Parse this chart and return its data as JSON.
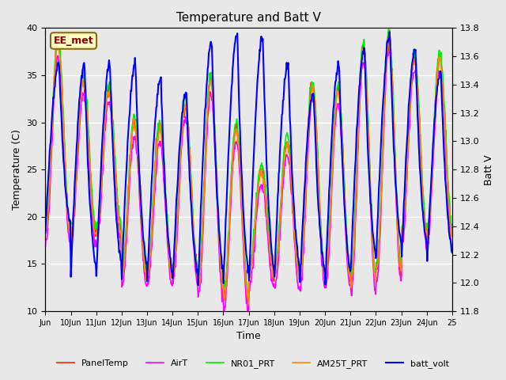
{
  "title": "Temperature and Batt V",
  "xlabel": "Time",
  "ylabel_left": "Temperature (C)",
  "ylabel_right": "Batt V",
  "annotation_text": "EE_met",
  "annotation_color": "#8B0000",
  "annotation_bg": "#FFFFC0",
  "annotation_border": "#8B6914",
  "left_ylim": [
    10,
    40
  ],
  "right_ylim": [
    11.8,
    13.8
  ],
  "plot_bg": "#E8E8E8",
  "grid_color": "#FFFFFF",
  "series": {
    "PanelTemp": {
      "color": "#FF2200",
      "lw": 1.2
    },
    "AirT": {
      "color": "#FF00FF",
      "lw": 1.2
    },
    "NR01_PRT": {
      "color": "#00EE00",
      "lw": 1.2
    },
    "AM25T_PRT": {
      "color": "#FF8800",
      "lw": 1.2
    },
    "batt_volt": {
      "color": "#0000FF",
      "lw": 1.5
    }
  },
  "xtick_labels": [
    "Jun",
    "10Jun",
    "11Jun",
    "12Jun",
    "13Jun",
    "14Jun",
    "15Jun",
    "16Jun",
    "17Jun",
    "18Jun",
    "19Jun",
    "20Jun",
    "21Jun",
    "22Jun",
    "23Jun",
    "24Jun",
    "25"
  ],
  "n_days": 16,
  "samples_per_day": 48,
  "day_peaks_temp": [
    38.5,
    34.5,
    33.5,
    30.0,
    29.5,
    32.0,
    34.5,
    29.5,
    25.0,
    28.0,
    34.0,
    33.5,
    38.0,
    39.0,
    37.0,
    37.0
  ],
  "day_mins_temp": [
    18.5,
    18.5,
    18.5,
    14.0,
    14.0,
    14.5,
    13.0,
    11.5,
    14.0,
    14.0,
    14.0,
    14.0,
    13.5,
    14.5,
    18.5,
    18.5
  ],
  "batt_peaks": [
    13.55,
    13.55,
    13.55,
    13.55,
    13.45,
    13.35,
    13.7,
    13.75,
    13.75,
    13.55,
    13.35,
    13.55,
    13.65,
    13.75,
    13.65,
    13.5
  ],
  "batt_mins": [
    12.35,
    12.05,
    12.05,
    12.05,
    12.0,
    12.0,
    12.0,
    12.0,
    12.0,
    12.05,
    12.0,
    12.0,
    12.1,
    12.2,
    12.2,
    12.15
  ],
  "right_ticks": [
    11.8,
    12.0,
    12.2,
    12.4,
    12.6,
    12.8,
    13.0,
    13.2,
    13.4,
    13.6,
    13.8
  ],
  "left_ticks": [
    10,
    15,
    20,
    25,
    30,
    35,
    40
  ]
}
